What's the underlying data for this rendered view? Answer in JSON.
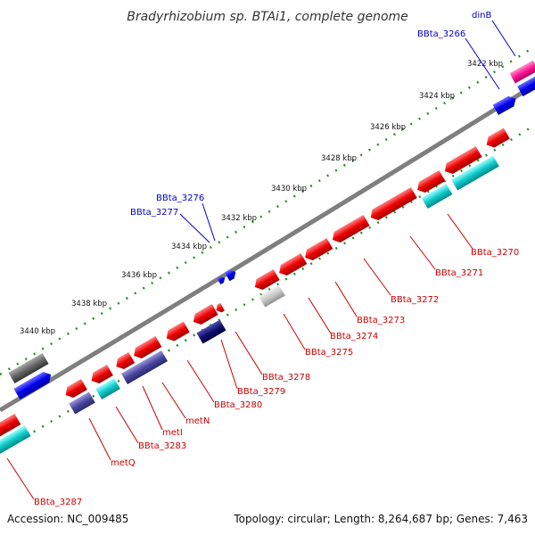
{
  "title": "Bradyrhizobium sp. BTAi1, complete genome",
  "footer": {
    "accession": "Accession: NC_009485",
    "stats": "Topology: circular; Length: 8,264,687 bp; Genes: 7,463"
  },
  "colors": {
    "forward_label": "#0000cc",
    "reverse_label": "#cc0000",
    "backbone": "#888888",
    "ruler_dots": "#2e8b2e"
  },
  "ruler_ticks": [
    "3422 kbp",
    "3424 kbp",
    "3426 kbp",
    "3428 kbp",
    "3430 kbp",
    "3432 kbp",
    "3434 kbp",
    "3436 kbp",
    "3438 kbp",
    "3440 kbp"
  ],
  "outer_gene_labels": [
    "dinB",
    "BBta_3266",
    "BBta_3276",
    "BBta_3277"
  ],
  "inner_gene_labels": [
    "BBta_3270",
    "BBta_3271",
    "BBta_3272",
    "BBta_3273",
    "BBta_3274",
    "BBta_3275",
    "BBta_3278",
    "BBta_3279",
    "BBta_3280",
    "metN",
    "metI",
    "BBta_3283",
    "metQ",
    "BBta_3287"
  ]
}
